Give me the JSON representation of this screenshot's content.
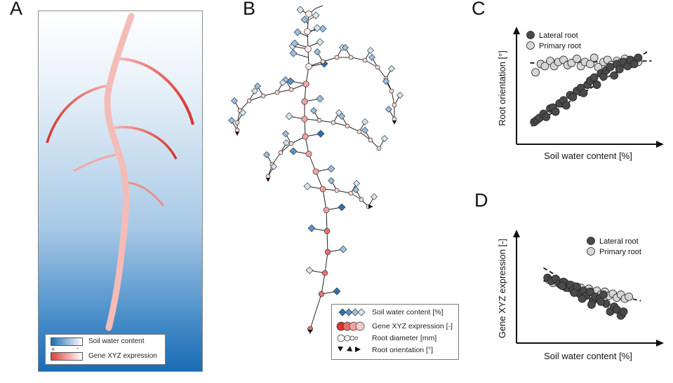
{
  "panel_labels": {
    "a": "A",
    "b": "B",
    "c": "C",
    "d": "D"
  },
  "panel_a": {
    "legend": {
      "soil": "Soil water content",
      "gene": "Gene XYZ expression",
      "plus": "+",
      "minus": "-"
    },
    "colors": {
      "soil_dark": "#1b6cb4",
      "root_light": "#f4b8b3",
      "root_dark": "#d8322c"
    }
  },
  "panel_b": {
    "legend": {
      "soil": "Soil water content [%]",
      "gene": "Gene XYZ expression [-]",
      "diameter": "Root diameter [mm]",
      "orientation": "Root orientation [°]"
    }
  },
  "chart_data": [
    {
      "type": "scatter",
      "panel": "C",
      "xlabel": "Soil water content [%]",
      "ylabel": "Root orientation [°]",
      "xlim": [
        0,
        10
      ],
      "ylim": [
        0,
        10
      ],
      "grid": false,
      "legend_position": "top-left",
      "series": [
        {
          "name": "Lateral root",
          "color": "#4a4a4a",
          "x": [
            0.8,
            1.0,
            1.2,
            1.5,
            1.7,
            2.0,
            2.2,
            2.4,
            2.7,
            3.0,
            3.2,
            3.5,
            3.7,
            4.0,
            4.3,
            4.5,
            4.8,
            5.0,
            5.3,
            5.5,
            5.8,
            6.0,
            6.2,
            6.5,
            6.8,
            7.0,
            7.2,
            7.5,
            7.8,
            8.0,
            8.3,
            8.6
          ],
          "y": [
            1.6,
            1.8,
            2.0,
            2.4,
            2.1,
            2.9,
            3.0,
            2.6,
            3.4,
            3.7,
            3.2,
            4.2,
            4.0,
            4.6,
            4.9,
            4.4,
            5.2,
            5.6,
            5.9,
            5.2,
            6.3,
            6.0,
            6.6,
            6.9,
            6.1,
            7.2,
            6.7,
            7.4,
            7.0,
            7.6,
            7.2,
            7.8
          ]
        },
        {
          "name": "Primary root",
          "color": "#d6d6d6",
          "x": [
            0.9,
            1.3,
            1.6,
            2.0,
            2.3,
            2.6,
            3.0,
            3.3,
            3.6,
            4.0,
            4.3,
            4.6,
            5.0,
            5.3,
            5.6,
            6.0,
            6.3,
            6.6,
            7.0,
            7.3,
            7.6,
            8.0,
            8.3,
            8.6
          ],
          "y": [
            6.4,
            7.2,
            7.0,
            7.5,
            7.0,
            7.4,
            7.6,
            7.1,
            7.3,
            7.7,
            7.0,
            7.4,
            7.2,
            7.8,
            6.9,
            7.4,
            7.6,
            7.1,
            7.5,
            7.3,
            7.7,
            7.2,
            7.5,
            7.4
          ]
        }
      ],
      "trendlines": [
        {
          "series": "Lateral root",
          "x": [
            0.6,
            9.3
          ],
          "y": [
            1.2,
            8.4
          ]
        },
        {
          "series": "Primary root",
          "x": [
            0.5,
            9.6
          ],
          "y": [
            7.3,
            7.5
          ]
        }
      ]
    },
    {
      "type": "scatter",
      "panel": "D",
      "xlabel": "Soil water content [%]",
      "ylabel": "Gene XYZ expression [-]",
      "xlim": [
        0,
        10
      ],
      "ylim": [
        0,
        10
      ],
      "grid": false,
      "legend_position": "top-right",
      "series": [
        {
          "name": "Lateral root",
          "color": "#4a4a4a",
          "x": [
            1.8,
            2.1,
            2.4,
            2.7,
            3.0,
            3.2,
            3.5,
            3.7,
            4.0,
            4.2,
            4.5,
            4.7,
            5.0,
            5.2,
            5.4,
            5.7,
            6.0,
            6.2,
            6.5,
            6.8,
            7.0,
            7.3,
            7.5,
            2.9,
            3.8,
            4.4,
            5.1,
            5.8
          ],
          "y": [
            6.0,
            5.7,
            5.9,
            5.4,
            5.6,
            5.0,
            5.3,
            4.8,
            5.1,
            4.4,
            4.7,
            4.2,
            4.6,
            3.7,
            4.1,
            3.9,
            4.3,
            3.4,
            2.6,
            3.1,
            2.8,
            2.2,
            2.6,
            5.2,
            4.5,
            3.9,
            3.3,
            3.6
          ]
        },
        {
          "name": "Primary root",
          "color": "#d6d6d6",
          "x": [
            1.9,
            2.2,
            2.5,
            2.8,
            3.1,
            3.4,
            3.7,
            4.0,
            4.3,
            4.6,
            4.9,
            5.2,
            5.5,
            5.8,
            6.1,
            6.4,
            6.7,
            7.0,
            7.3,
            7.6,
            7.9
          ],
          "y": [
            5.8,
            5.5,
            5.7,
            5.3,
            5.5,
            5.0,
            5.2,
            4.8,
            5.0,
            4.6,
            4.9,
            4.5,
            4.7,
            4.3,
            4.6,
            4.2,
            4.4,
            4.0,
            4.3,
            3.9,
            4.1
          ]
        }
      ],
      "trendlines": [
        {
          "series": "Lateral root",
          "x": [
            1.5,
            7.8
          ],
          "y": [
            7.0,
            2.0
          ]
        },
        {
          "series": "Primary root",
          "x": [
            1.5,
            8.8
          ],
          "y": [
            5.7,
            3.7
          ]
        }
      ]
    }
  ]
}
